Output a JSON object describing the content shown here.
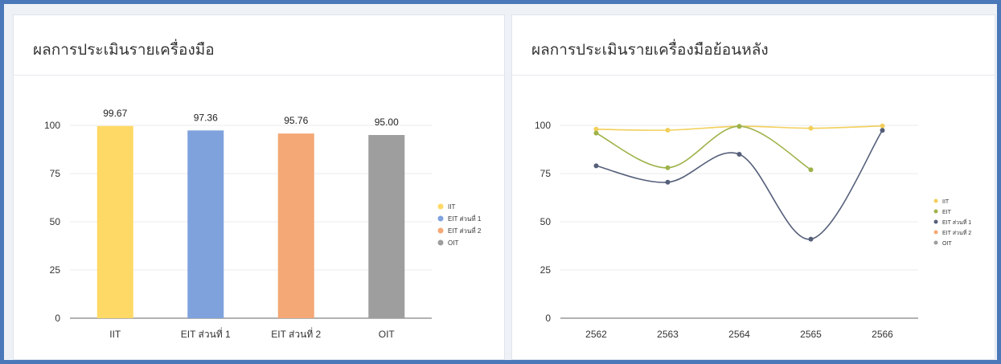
{
  "colors": {
    "frame": "#4a78b8",
    "iit": "#ffd966",
    "eit1": "#7fa2dd",
    "eit2": "#f4a875",
    "oit": "#9e9e9e",
    "line_iit": "#f2cf5b",
    "line_eit": "#9db34a",
    "line_eit1": "#555f7a"
  },
  "panels": {
    "left": {
      "title": "ผลการประเมินรายเครื่องมือ"
    },
    "right": {
      "title": "ผลการประเมินรายเครื่องมือย้อนหลัง"
    }
  },
  "chart_data": [
    {
      "type": "bar",
      "title": "ผลการประเมินรายเครื่องมือ",
      "categories": [
        "IIT",
        "EIT ส่วนที่ 1",
        "EIT ส่วนที่ 2",
        "OIT"
      ],
      "values": [
        99.67,
        97.36,
        95.76,
        95.0
      ],
      "value_labels": [
        "99.67",
        "97.36",
        "95.76",
        "95.00"
      ],
      "ylim": [
        0,
        100
      ],
      "yticks": [
        0,
        25,
        50,
        75,
        100
      ],
      "grid": true,
      "legend": [
        "IIT",
        "EIT ส่วนที่ 1",
        "EIT ส่วนที่ 2",
        "OIT"
      ],
      "legend_position": "right"
    },
    {
      "type": "line",
      "title": "ผลการประเมินรายเครื่องมือย้อนหลัง",
      "x": [
        "2562",
        "2563",
        "2564",
        "2565",
        "2566"
      ],
      "ylim": [
        0,
        100
      ],
      "yticks": [
        0,
        25,
        50,
        75,
        100
      ],
      "grid": true,
      "legend": [
        "IIT",
        "EIT",
        "EIT ส่วนที่ 1",
        "EIT ส่วนที่ 2",
        "OIT"
      ],
      "legend_position": "right",
      "series": [
        {
          "name": "IIT",
          "values": [
            98,
            97.5,
            99.5,
            98.5,
            99.7
          ]
        },
        {
          "name": "EIT",
          "values": [
            96,
            78,
            99.5,
            77,
            null
          ]
        },
        {
          "name": "EIT ส่วนที่ 1",
          "values": [
            79,
            70.5,
            85,
            41,
            97.4
          ]
        }
      ]
    }
  ]
}
